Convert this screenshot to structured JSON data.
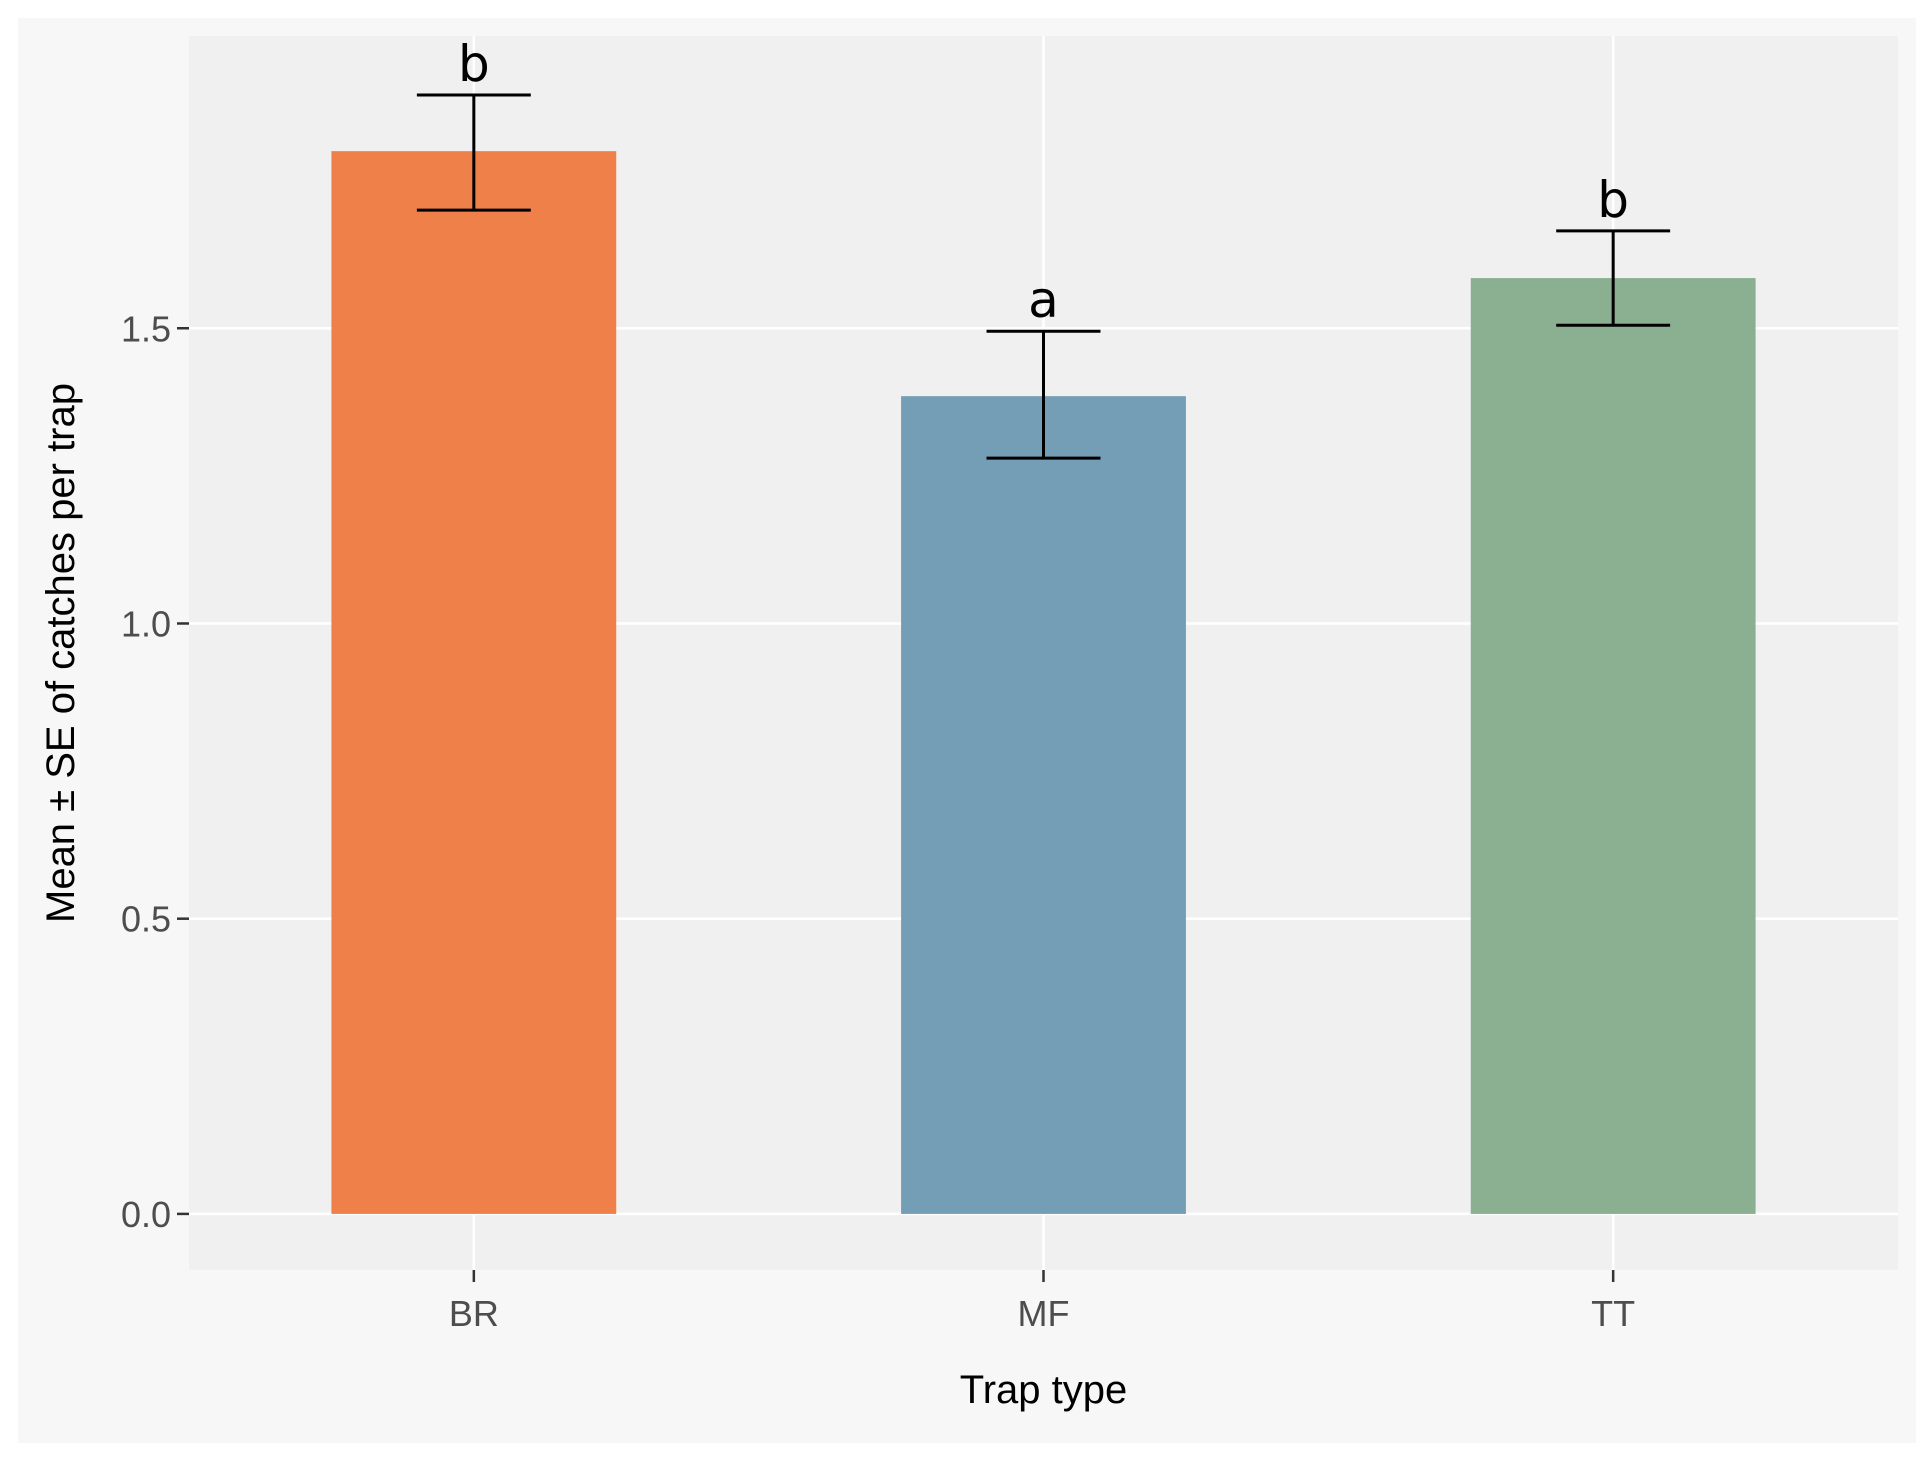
{
  "chart_data": {
    "type": "bar",
    "title": "",
    "xlabel": "Trap type",
    "ylabel": "Mean ± SE of catches per trap",
    "categories": [
      "BR",
      "MF",
      "TT"
    ],
    "values": [
      1.8,
      1.385,
      1.585
    ],
    "error_low": [
      1.7,
      1.28,
      1.505
    ],
    "error_high": [
      1.895,
      1.495,
      1.665
    ],
    "significance_letters": [
      "b",
      "a",
      "b"
    ],
    "colors": [
      "#f0804a",
      "#749db6",
      "#8baf91"
    ],
    "ylim": [
      -0.095,
      1.995
    ],
    "yticks": [
      0.0,
      0.5,
      1.0,
      1.5
    ],
    "ytick_labels": [
      "0.0",
      "0.5",
      "1.0",
      "1.5"
    ],
    "grid": true,
    "panel_background": "#f0f0f0",
    "grid_color": "#ffffff"
  }
}
